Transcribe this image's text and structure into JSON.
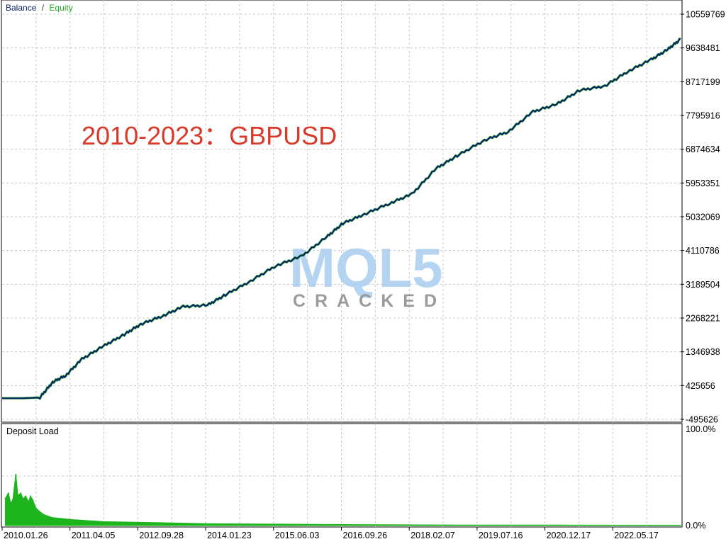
{
  "legend": {
    "balance": "Balance",
    "separator": "/",
    "equity": "Equity"
  },
  "annotation": "2010-2023：GBPUSD",
  "watermark": {
    "logo": "MQL5",
    "subtitle": "CRACKED"
  },
  "colors": {
    "balance": "#0a1f6b",
    "equity": "#22aa22",
    "annotation": "#d83a2a",
    "grid": "#c8c8c8",
    "deposit_fill": "#1eb41e",
    "watermark_blue": "#a8cdf0",
    "watermark_red": "#f0b0b0",
    "watermark_gray": "#8a8a8a"
  },
  "chart_data": [
    {
      "type": "line",
      "title": "",
      "series": [
        {
          "name": "Balance",
          "values": "see x/y"
        },
        {
          "name": "Equity",
          "values": "same as balance (overlaps)"
        }
      ],
      "x": [
        "2010-01-01",
        "2010-06-01",
        "2010-10-01",
        "2011-01-01",
        "2011-04-05",
        "2011-08-01",
        "2012-01-01",
        "2012-06-01",
        "2012-09-28",
        "2013-03-01",
        "2013-08-01",
        "2014-01-23",
        "2014-06-01",
        "2014-12-01",
        "2015-06-03",
        "2015-12-01",
        "2016-06-01",
        "2016-09-26",
        "2017-03-01",
        "2017-09-01",
        "2018-02-07",
        "2018-08-01",
        "2019-01-01",
        "2019-07-16",
        "2020-01-01",
        "2020-07-01",
        "2020-12-17",
        "2021-06-01",
        "2021-12-01",
        "2022-05-17",
        "2022-11-01",
        "2023-03-01",
        "2023-06-01"
      ],
      "y": [
        80000,
        80000,
        100000,
        520000,
        700000,
        1150000,
        1500000,
        1820000,
        2100000,
        2320000,
        2580000,
        2620000,
        2900000,
        3280000,
        3700000,
        3950000,
        4480000,
        4850000,
        5100000,
        5400000,
        5650000,
        6350000,
        6700000,
        7120000,
        7350000,
        7900000,
        8100000,
        8480000,
        8600000,
        9000000,
        9320000,
        9600000,
        9880000
      ],
      "y_tick_labels": [
        "10559769",
        "9638481",
        "8717199",
        "7795916",
        "6874634",
        "5953351",
        "5032069",
        "4110786",
        "3189504",
        "2268221",
        "1346938",
        "425656",
        "-495626"
      ],
      "ylim": [
        -495626,
        10559769
      ],
      "x_tick_labels": [
        "2010.01.26",
        "2011.04.05",
        "2012.09.28",
        "2014.01.23",
        "2015.06.03",
        "2016.09.26",
        "2018.02.07",
        "2019.07.16",
        "2020.12.17",
        "2022.05.17"
      ],
      "grid": true,
      "legend_position": "top-left"
    },
    {
      "type": "area",
      "title": "Deposit Load",
      "ylim": [
        0,
        100
      ],
      "y_tick_labels": [
        "100.0%",
        "0.0%"
      ],
      "x": [
        "2010-01-26",
        "2010-02-15",
        "2010-03-05",
        "2010-03-20",
        "2010-04-10",
        "2010-04-25",
        "2010-05-15",
        "2010-06-01",
        "2010-06-20",
        "2010-07-10",
        "2010-07-25",
        "2010-08-10",
        "2010-09-01",
        "2010-10-01",
        "2010-11-01",
        "2011-01-01",
        "2011-06-01",
        "2012-01-01",
        "2013-01-01",
        "2014-01-01",
        "2015-06-01",
        "2017-01-01",
        "2019-01-01",
        "2021-01-01",
        "2023-06-01"
      ],
      "values": [
        28,
        33,
        22,
        27,
        52,
        30,
        33,
        27,
        30,
        24,
        30,
        26,
        18,
        14,
        11,
        8,
        6,
        4,
        3,
        2,
        1.5,
        1,
        0.6,
        0.5,
        0.4
      ],
      "grid": true
    }
  ]
}
